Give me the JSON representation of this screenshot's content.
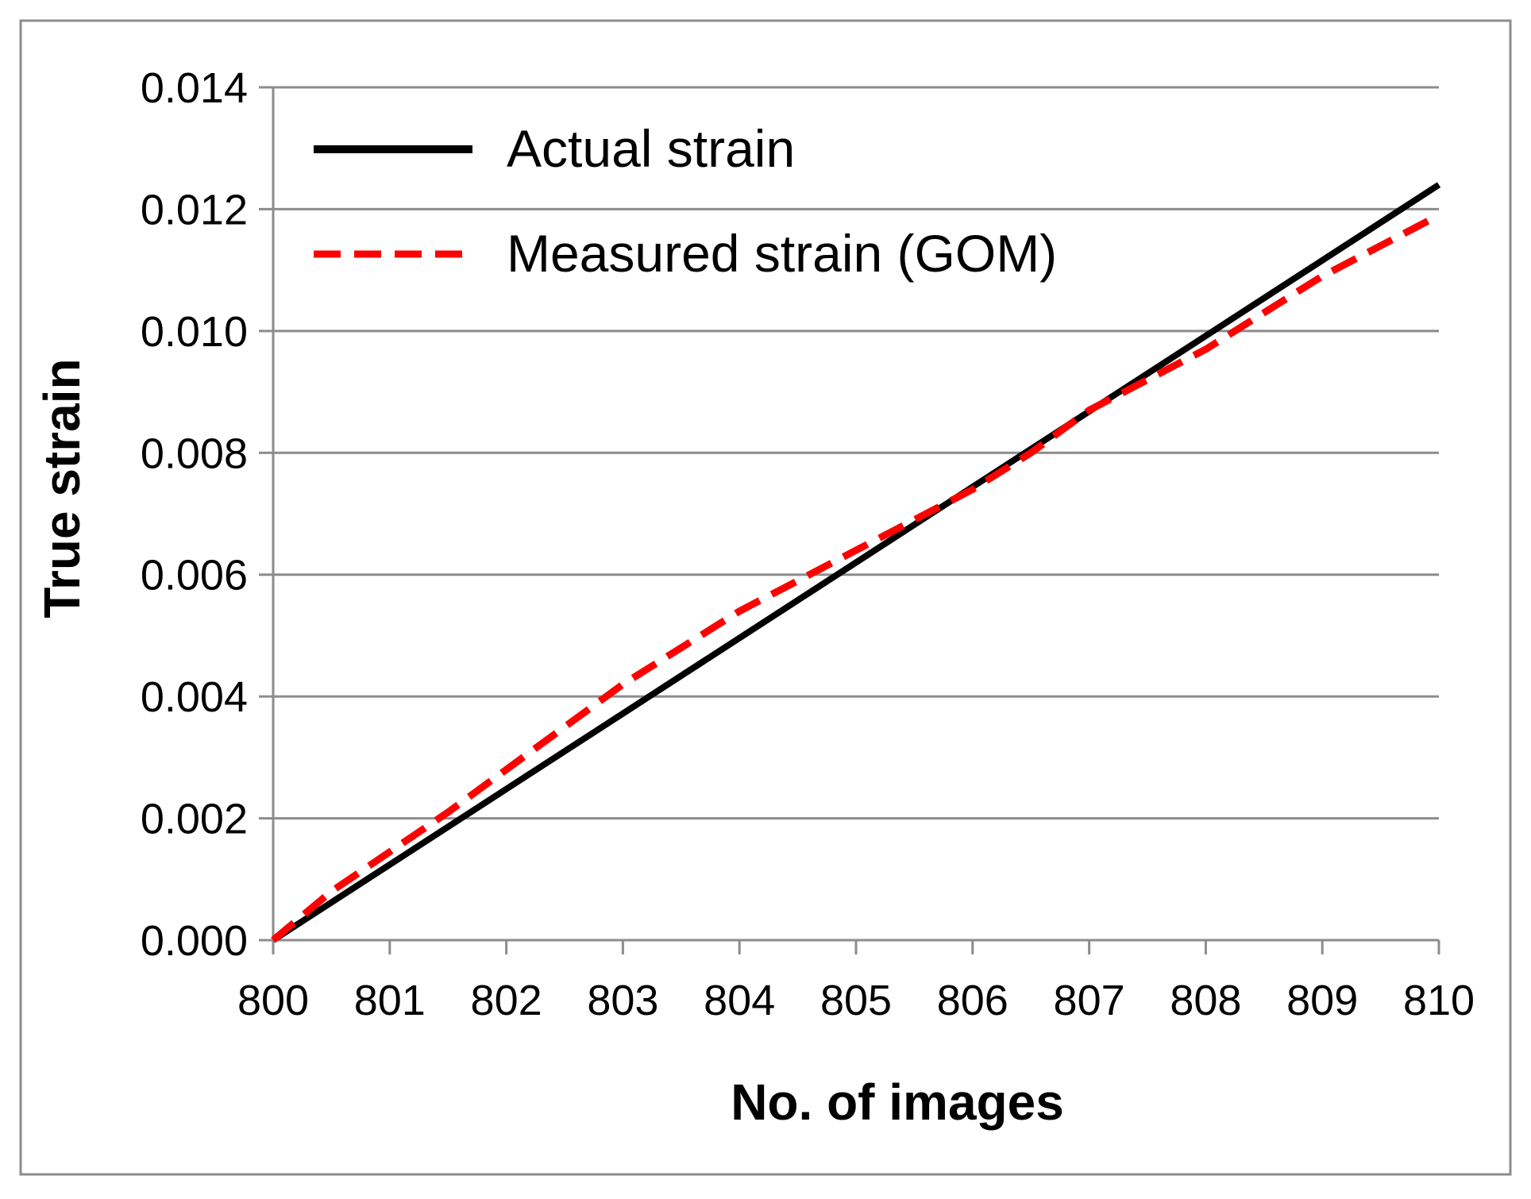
{
  "chart_data": {
    "type": "line",
    "xlabel": "No. of images",
    "ylabel": "True strain",
    "xlim": [
      800,
      810
    ],
    "ylim": [
      0,
      0.014
    ],
    "xticks": [
      "800",
      "801",
      "802",
      "803",
      "804",
      "805",
      "806",
      "807",
      "808",
      "809",
      "810"
    ],
    "yticks": [
      "0.000",
      "0.002",
      "0.004",
      "0.006",
      "0.008",
      "0.010",
      "0.012",
      "0.014"
    ],
    "grid": "horizontal",
    "legend_position": "top-left",
    "series": [
      {
        "name": "Actual strain",
        "color": "#000000",
        "style": "solid",
        "x": [
          800,
          801,
          802,
          803,
          804,
          805,
          806,
          807,
          808,
          809,
          810
        ],
        "y": [
          0,
          0.00124,
          0.00248,
          0.00372,
          0.00496,
          0.0062,
          0.00744,
          0.00868,
          0.00992,
          0.01116,
          0.0124
        ]
      },
      {
        "name": "Measured strain (GOM)",
        "color": "#ff0000",
        "style": "dashed",
        "x": [
          800,
          800.5,
          801,
          801.5,
          802,
          802.5,
          803,
          803.5,
          804,
          804.5,
          805,
          805.5,
          806,
          806.5,
          807,
          807.5,
          808,
          808.5,
          809,
          809.5,
          810
        ],
        "y": [
          0,
          0.0008,
          0.00145,
          0.0021,
          0.0028,
          0.0035,
          0.0042,
          0.0048,
          0.0054,
          0.0059,
          0.0064,
          0.0069,
          0.0074,
          0.008,
          0.0087,
          0.0092,
          0.0097,
          0.0103,
          0.0109,
          0.0114,
          0.0119
        ]
      }
    ]
  }
}
